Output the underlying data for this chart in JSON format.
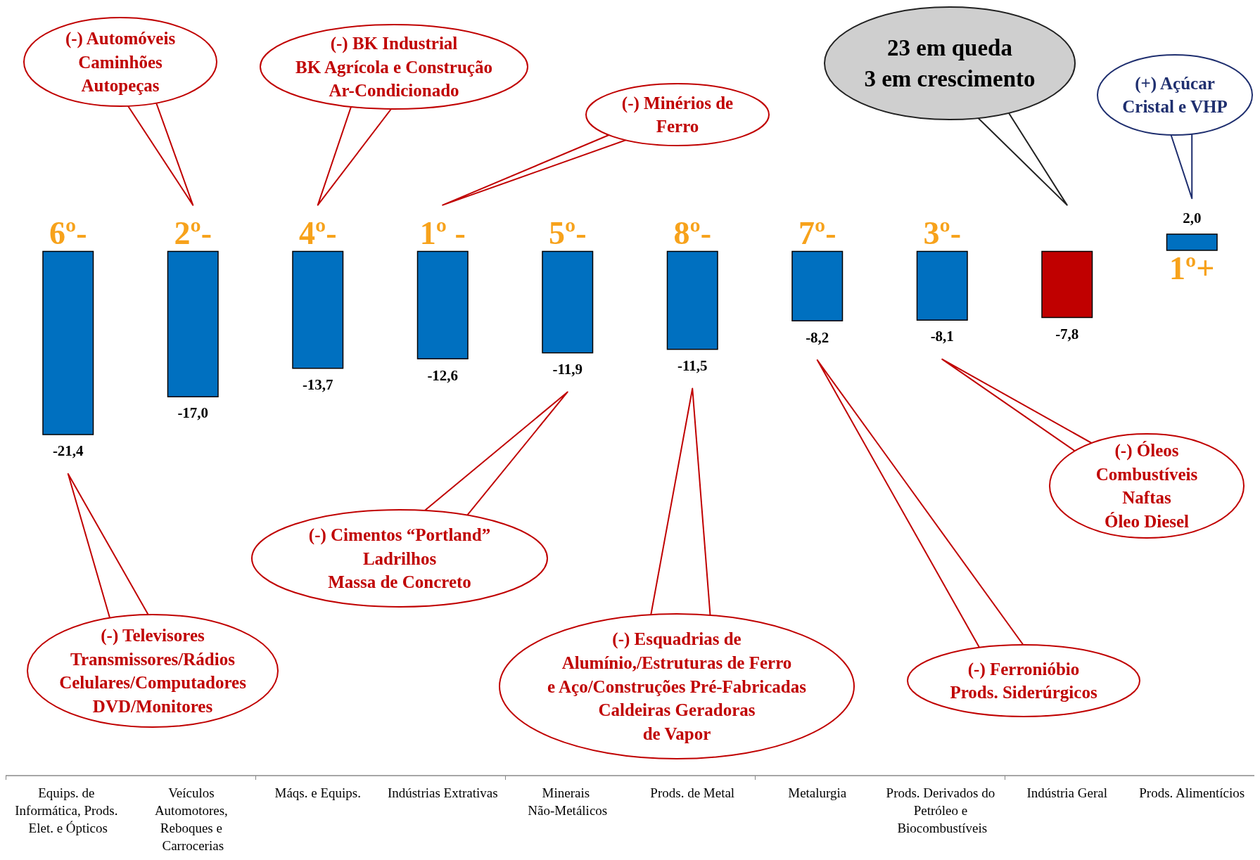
{
  "chart_data": {
    "type": "bar",
    "categories": [
      "Equips. de Informática, Prods. Elet. e Ópticos",
      "Veículos Automotores, Reboques e Carrocerias",
      "Máqs. e Equips.",
      "Indústrias Extrativas",
      "Minerais Não-Metálicos",
      "Prods. de Metal",
      "Metalurgia",
      "Prods. Derivados do Petróleo e Biocombustíveis",
      "Indústria Geral",
      "Prods. Alimentícios"
    ],
    "values": [
      -21.4,
      -17.0,
      -13.7,
      -12.6,
      -11.9,
      -11.5,
      -8.2,
      -8.1,
      -7.8,
      2.0
    ],
    "colors": [
      "#0070c0",
      "#0070c0",
      "#0070c0",
      "#0070c0",
      "#0070c0",
      "#0070c0",
      "#0070c0",
      "#0070c0",
      "#c00000",
      "#0070c0"
    ],
    "value_labels": [
      "-21,4",
      "-17,0",
      "-13,7",
      "-12,6",
      "-11,9",
      "-11,5",
      "-8,2",
      "-8,1",
      "-7,8",
      "2,0"
    ],
    "tick_labels": "x",
    "grid": false,
    "annotations": [
      "(-) Televisores\nTransmissores/Rádios\nCelulares/Computadores\nDVD/Monitores",
      "(-) Automóveis\nCaminhões\nAutopeças",
      "(-) BK Industrial\nBK Agrícola e Construção\nAr-Condicionado",
      "(-) Minérios de\nFerro",
      "(-) Cimentos “Portland”\nLadrilhos\nMassa de Concreto",
      "(-) Esquadrias de\nAlumínio,/Estruturas de Ferro\ne Aço/Construções Pré-Fabricadas\nCaldeiras Geradoras\nde Vapor",
      "(-) Ferronióbio\nProds. Siderúrgicos",
      "(-) Óleos\nCombustíveis\nNaftas\nÓleo Diesel",
      "23 em queda\n3 em crescimento",
      "(+) Açúcar\nCristal e VHP",
      {
        "text": "6º-",
        "x": "Equips. de Informática, Prods. Elet. e Ópticos",
        "y": 0
      },
      {
        "text": "2º-",
        "x": "Veículos Automotores, Reboques e Carrocerias",
        "y": 0
      },
      {
        "text": "4º-",
        "x": "Máqs. e Equips.",
        "y": 0
      },
      {
        "text": "1º -",
        "x": "Indústrias Extrativas",
        "y": 0
      },
      {
        "text": "5º-",
        "x": "Minerais Não-Metálicos",
        "y": 0
      },
      {
        "text": "8º-",
        "x": "Prods. de Metal",
        "y": 0
      },
      {
        "text": "7º-",
        "x": "Metalurgia",
        "y": 0
      },
      {
        "text": "3º-",
        "x": "Prods. Derivados do Petróleo e Biocombustíveis",
        "y": 0
      },
      {
        "text": "1º+",
        "x": "Prods. Alimentícios",
        "y": 0
      }
    ]
  }
}
